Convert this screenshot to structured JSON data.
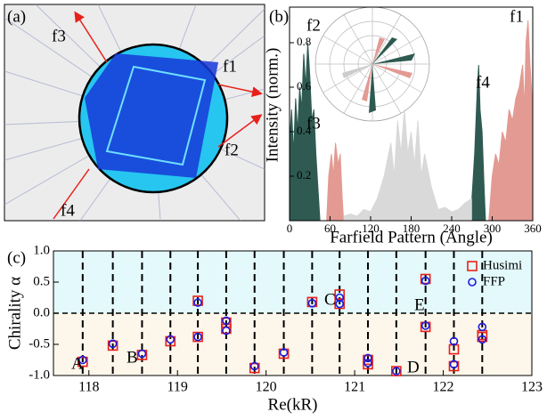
{
  "panel_a": {
    "label": "(a)",
    "f1": "f1",
    "f2": "f2",
    "f3": "f3",
    "f4": "f4"
  },
  "chart_data": [
    {
      "type": "area",
      "label": "(b)",
      "xlabel": "Farfield Pattern (Angle)",
      "ylabel": "Intensity (norm.)",
      "xlim": [
        0,
        360
      ],
      "ylim": [
        0,
        0.96
      ],
      "xticks": [
        0,
        60,
        120,
        180,
        240,
        300,
        360
      ],
      "yticks": [
        0.2,
        0.4,
        0.6,
        0.8
      ],
      "annotations": [
        "f2",
        "f3",
        "f4",
        "f1"
      ],
      "areas": [
        {
          "color": "#2f5a52",
          "x": [
            0,
            3,
            6,
            9,
            12,
            15,
            18,
            21,
            24,
            27,
            30,
            33,
            36,
            39,
            42,
            45
          ],
          "values": [
            0.35,
            0.5,
            0.3,
            0.55,
            0.4,
            0.6,
            0.5,
            0.75,
            0.6,
            0.8,
            0.65,
            0.45,
            0.5,
            0.3,
            0.15,
            0
          ]
        },
        {
          "color": "#e29a93",
          "x": [
            55,
            58,
            62,
            65,
            68,
            72,
            75,
            78,
            80
          ],
          "values": [
            0,
            0.2,
            0.3,
            0.2,
            0.35,
            0.25,
            0.3,
            0.1,
            0
          ]
        },
        {
          "color": "#d9d9d9",
          "x": [
            80,
            90,
            100,
            110,
            120,
            130,
            140,
            150,
            155,
            160,
            165,
            170,
            175,
            180,
            185,
            190,
            195,
            200,
            210,
            220,
            230,
            240,
            250,
            260,
            270
          ],
          "values": [
            0.02,
            0.03,
            0.02,
            0.05,
            0.04,
            0.1,
            0.2,
            0.35,
            0.2,
            0.45,
            0.3,
            0.5,
            0.3,
            0.4,
            0.25,
            0.45,
            0.2,
            0.3,
            0.15,
            0.05,
            0.06,
            0.04,
            0.05,
            0.08,
            0.1
          ]
        },
        {
          "color": "#2f5a52",
          "x": [
            270,
            274,
            278,
            280,
            282,
            285,
            288,
            290
          ],
          "values": [
            0.1,
            0.3,
            0.6,
            0.7,
            0.5,
            0.4,
            0.15,
            0
          ]
        },
        {
          "color": "#e29a93",
          "x": [
            295,
            300,
            305,
            310,
            315,
            320,
            325,
            330,
            335,
            340,
            345,
            348,
            350,
            353,
            356,
            360
          ],
          "values": [
            0,
            0.2,
            0.3,
            0.25,
            0.4,
            0.35,
            0.5,
            0.45,
            0.55,
            0.6,
            0.7,
            0.5,
            0.8,
            0.9,
            0.7,
            0.5
          ]
        }
      ]
    },
    {
      "type": "scatter",
      "label": "(c)",
      "xlabel": "Re(kR)",
      "ylabel": "Chirality α",
      "xlim": [
        117.6,
        123
      ],
      "ylim": [
        -1,
        1
      ],
      "xticks": [
        118,
        119,
        120,
        121,
        122,
        123
      ],
      "yticks": [
        {
          "value": -1,
          "label": "-1.0"
        },
        {
          "value": -0.5,
          "label": "-0.5"
        },
        {
          "value": 0,
          "label": "0.0"
        },
        {
          "value": 0.5,
          "label": "0.5"
        },
        {
          "value": 1,
          "label": "1.0"
        }
      ],
      "vlines": [
        117.93,
        118.27,
        118.6,
        118.92,
        119.23,
        119.55,
        119.87,
        120.2,
        120.52,
        120.83,
        121.15,
        121.47,
        121.8,
        122.12,
        122.44
      ],
      "annotations": [
        "A",
        "B",
        "C",
        "D",
        "E"
      ],
      "upper_color": "#e3f9fb",
      "lower_color": "#fdf6ea",
      "series": [
        {
          "name": "Husimi",
          "color": "#e8201a",
          "x": [
            117.93,
            118.27,
            118.6,
            118.92,
            119.23,
            119.23,
            119.55,
            119.55,
            119.87,
            120.2,
            120.52,
            120.83,
            120.83,
            121.15,
            121.15,
            121.47,
            121.8,
            121.8,
            122.12,
            122.12,
            122.44,
            122.44
          ],
          "values": [
            -0.78,
            -0.52,
            -0.67,
            -0.45,
            0.2,
            -0.38,
            -0.15,
            -0.25,
            -0.88,
            -0.65,
            0.18,
            0.3,
            0.15,
            -0.75,
            -0.82,
            -0.93,
            0.55,
            -0.22,
            -0.58,
            -0.85,
            -0.35,
            -0.38
          ]
        },
        {
          "name": "FFP",
          "color": "#1a1ae0",
          "x": [
            117.93,
            118.27,
            118.6,
            118.92,
            119.23,
            119.23,
            119.55,
            119.55,
            119.87,
            120.2,
            120.52,
            120.83,
            120.83,
            121.15,
            121.15,
            121.47,
            121.8,
            121.8,
            122.12,
            122.12,
            122.44,
            122.44
          ],
          "values": [
            -0.75,
            -0.49,
            -0.65,
            -0.42,
            0.17,
            -0.38,
            -0.12,
            -0.28,
            -0.85,
            -0.63,
            0.16,
            0.25,
            0.15,
            -0.72,
            -0.8,
            -0.93,
            0.52,
            -0.2,
            -0.45,
            -0.82,
            -0.22,
            -0.42
          ]
        }
      ]
    }
  ]
}
